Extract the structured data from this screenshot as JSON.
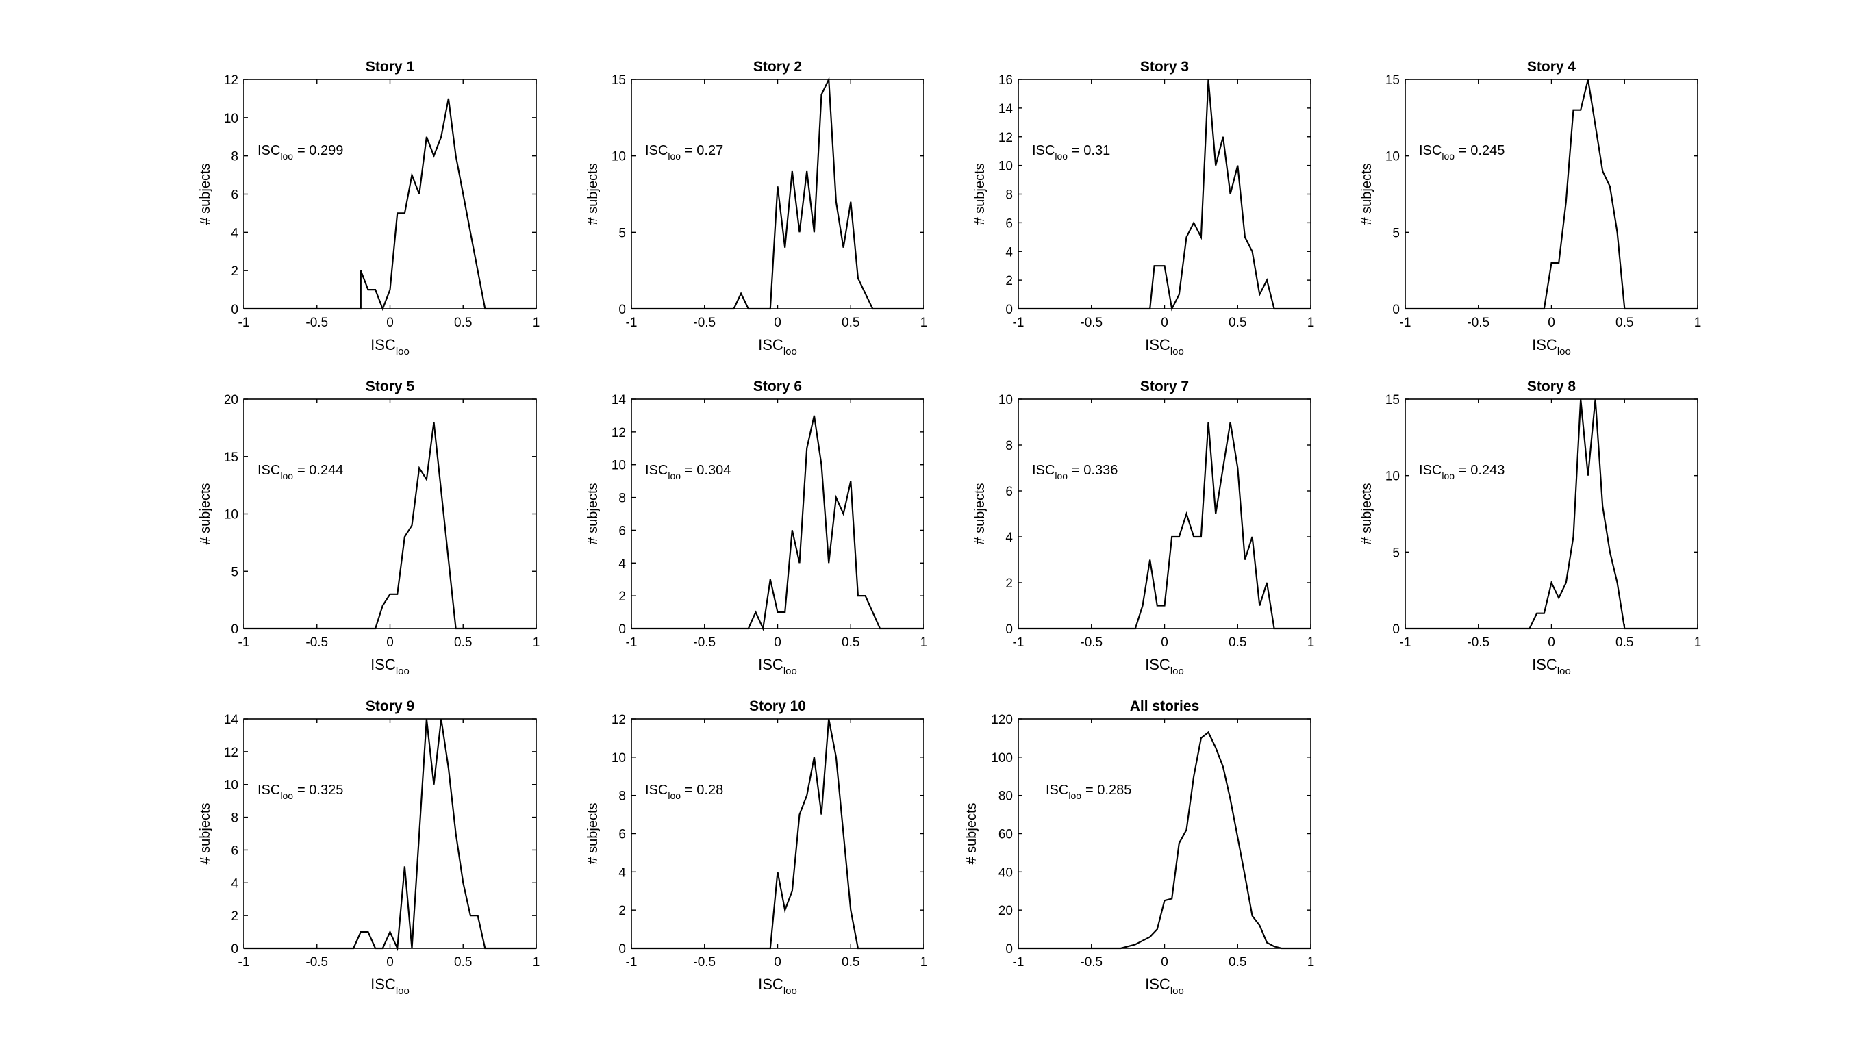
{
  "chart_data": [
    {
      "type": "line",
      "title": "Story 1",
      "xlabel": "ISC",
      "xlabel_sub": "loo",
      "ylabel": "# subjects",
      "xlim": [
        -1,
        1
      ],
      "ylim": [
        0,
        12
      ],
      "yticks": [
        0,
        2,
        4,
        6,
        8,
        10,
        12
      ],
      "xticks": [
        -1,
        -0.5,
        0,
        0.5,
        1
      ],
      "annotation": {
        "prefix": "ISC",
        "sub": "loo",
        "value": "= 0.299"
      },
      "x": [
        -1,
        -0.2,
        -0.2,
        -0.15,
        -0.1,
        -0.05,
        0,
        0.05,
        0.1,
        0.15,
        0.2,
        0.25,
        0.3,
        0.35,
        0.4,
        0.45,
        0.5,
        0.55,
        0.6,
        0.65,
        1
      ],
      "y": [
        0,
        0,
        2,
        1,
        1,
        0,
        1,
        5,
        5,
        7,
        6,
        9,
        8,
        9,
        11,
        8,
        6,
        4,
        2,
        0,
        0
      ]
    },
    {
      "type": "line",
      "title": "Story 2",
      "xlabel": "ISC",
      "xlabel_sub": "loo",
      "ylabel": "# subjects",
      "xlim": [
        -1,
        1
      ],
      "ylim": [
        0,
        15
      ],
      "yticks": [
        0,
        5,
        10,
        15
      ],
      "xticks": [
        -1,
        -0.5,
        0,
        0.5,
        1
      ],
      "annotation": {
        "prefix": "ISC",
        "sub": "loo",
        "value": "= 0.27"
      },
      "x": [
        -1,
        -0.3,
        -0.25,
        -0.2,
        -0.05,
        0,
        0.05,
        0.1,
        0.15,
        0.2,
        0.25,
        0.3,
        0.35,
        0.4,
        0.45,
        0.5,
        0.55,
        0.6,
        0.65,
        1
      ],
      "y": [
        0,
        0,
        1,
        0,
        0,
        8,
        4,
        9,
        5,
        9,
        5,
        14,
        15,
        7,
        4,
        7,
        2,
        1,
        0,
        0
      ]
    },
    {
      "type": "line",
      "title": "Story 3",
      "xlabel": "ISC",
      "xlabel_sub": "loo",
      "ylabel": "# subjects",
      "xlim": [
        -1,
        1
      ],
      "ylim": [
        0,
        16
      ],
      "yticks": [
        0,
        2,
        4,
        6,
        8,
        10,
        12,
        14,
        16
      ],
      "xticks": [
        -1,
        -0.5,
        0,
        0.5,
        1
      ],
      "annotation": {
        "prefix": "ISC",
        "sub": "loo",
        "value": "= 0.31"
      },
      "x": [
        -1,
        -0.1,
        -0.07,
        0,
        0.05,
        0.1,
        0.15,
        0.2,
        0.25,
        0.3,
        0.35,
        0.4,
        0.45,
        0.5,
        0.55,
        0.6,
        0.65,
        0.7,
        0.75,
        1
      ],
      "y": [
        0,
        0,
        3,
        3,
        0,
        1,
        5,
        6,
        5,
        16,
        10,
        12,
        8,
        10,
        5,
        4,
        1,
        2,
        0,
        0
      ]
    },
    {
      "type": "line",
      "title": "Story 4",
      "xlabel": "ISC",
      "xlabel_sub": "loo",
      "ylabel": "# subjects",
      "xlim": [
        -1,
        1
      ],
      "ylim": [
        0,
        15
      ],
      "yticks": [
        0,
        5,
        10,
        15
      ],
      "xticks": [
        -1,
        -0.5,
        0,
        0.5,
        1
      ],
      "annotation": {
        "prefix": "ISC",
        "sub": "loo",
        "value": "= 0.245"
      },
      "x": [
        -1,
        -0.05,
        0,
        0.05,
        0.1,
        0.15,
        0.2,
        0.25,
        0.3,
        0.35,
        0.4,
        0.45,
        0.5,
        1
      ],
      "y": [
        0,
        0,
        3,
        3,
        7,
        13,
        13,
        15,
        12,
        9,
        8,
        5,
        0,
        0
      ]
    },
    {
      "type": "line",
      "title": "Story 5",
      "xlabel": "ISC",
      "xlabel_sub": "loo",
      "ylabel": "# subjects",
      "xlim": [
        -1,
        1
      ],
      "ylim": [
        0,
        20
      ],
      "yticks": [
        0,
        5,
        10,
        15,
        20
      ],
      "xticks": [
        -1,
        -0.5,
        0,
        0.5,
        1
      ],
      "annotation": {
        "prefix": "ISC",
        "sub": "loo",
        "value": "= 0.244"
      },
      "x": [
        -1,
        -0.1,
        -0.05,
        0,
        0.05,
        0.1,
        0.15,
        0.2,
        0.25,
        0.3,
        0.35,
        0.4,
        0.45,
        0.5,
        1
      ],
      "y": [
        0,
        0,
        2,
        3,
        3,
        8,
        9,
        14,
        13,
        18,
        12,
        6,
        0,
        0,
        0
      ]
    },
    {
      "type": "line",
      "title": "Story 6",
      "xlabel": "ISC",
      "xlabel_sub": "loo",
      "ylabel": "# subjects",
      "xlim": [
        -1,
        1
      ],
      "ylim": [
        0,
        14
      ],
      "yticks": [
        0,
        2,
        4,
        6,
        8,
        10,
        12,
        14
      ],
      "xticks": [
        -1,
        -0.5,
        0,
        0.5,
        1
      ],
      "annotation": {
        "prefix": "ISC",
        "sub": "loo",
        "value": "= 0.304"
      },
      "x": [
        -1,
        -0.2,
        -0.15,
        -0.1,
        -0.05,
        0,
        0.05,
        0.1,
        0.15,
        0.2,
        0.25,
        0.3,
        0.35,
        0.4,
        0.45,
        0.5,
        0.55,
        0.6,
        0.65,
        0.7,
        1
      ],
      "y": [
        0,
        0,
        1,
        0,
        3,
        1,
        1,
        6,
        4,
        11,
        13,
        10,
        4,
        8,
        7,
        9,
        2,
        2,
        1,
        0,
        0
      ]
    },
    {
      "type": "line",
      "title": "Story 7",
      "xlabel": "ISC",
      "xlabel_sub": "loo",
      "ylabel": "# subjects",
      "xlim": [
        -1,
        1
      ],
      "ylim": [
        0,
        10
      ],
      "yticks": [
        0,
        2,
        4,
        6,
        8,
        10
      ],
      "xticks": [
        -1,
        -0.5,
        0,
        0.5,
        1
      ],
      "annotation": {
        "prefix": "ISC",
        "sub": "loo",
        "value": "= 0.336"
      },
      "x": [
        -1,
        -0.2,
        -0.15,
        -0.1,
        -0.05,
        0,
        0.05,
        0.1,
        0.15,
        0.2,
        0.25,
        0.3,
        0.35,
        0.4,
        0.45,
        0.5,
        0.55,
        0.6,
        0.65,
        0.7,
        0.75,
        1
      ],
      "y": [
        0,
        0,
        1,
        3,
        1,
        1,
        4,
        4,
        5,
        4,
        4,
        9,
        5,
        7,
        9,
        7,
        3,
        4,
        1,
        2,
        0,
        0
      ]
    },
    {
      "type": "line",
      "title": "Story 8",
      "xlabel": "ISC",
      "xlabel_sub": "loo",
      "ylabel": "# subjects",
      "xlim": [
        -1,
        1
      ],
      "ylim": [
        0,
        15
      ],
      "yticks": [
        0,
        5,
        10,
        15
      ],
      "xticks": [
        -1,
        -0.5,
        0,
        0.5,
        1
      ],
      "annotation": {
        "prefix": "ISC",
        "sub": "loo",
        "value": "= 0.243"
      },
      "x": [
        -1,
        -0.15,
        -0.1,
        -0.05,
        0,
        0.05,
        0.1,
        0.15,
        0.2,
        0.25,
        0.3,
        0.35,
        0.4,
        0.45,
        0.5,
        1
      ],
      "y": [
        0,
        0,
        1,
        1,
        3,
        2,
        3,
        6,
        15,
        10,
        15,
        8,
        5,
        3,
        0,
        0
      ]
    },
    {
      "type": "line",
      "title": "Story 9",
      "xlabel": "ISC",
      "xlabel_sub": "loo",
      "ylabel": "# subjects",
      "xlim": [
        -1,
        1
      ],
      "ylim": [
        0,
        14
      ],
      "yticks": [
        0,
        2,
        4,
        6,
        8,
        10,
        12,
        14
      ],
      "xticks": [
        -1,
        -0.5,
        0,
        0.5,
        1
      ],
      "annotation": {
        "prefix": "ISC",
        "sub": "loo",
        "value": "= 0.325"
      },
      "x": [
        -1,
        -0.25,
        -0.2,
        -0.15,
        -0.1,
        -0.05,
        0,
        0.05,
        0.1,
        0.15,
        0.2,
        0.25,
        0.3,
        0.35,
        0.4,
        0.45,
        0.5,
        0.55,
        0.6,
        0.65,
        1
      ],
      "y": [
        0,
        0,
        1,
        1,
        0,
        0,
        1,
        0,
        5,
        0,
        7,
        14,
        10,
        14,
        11,
        7,
        4,
        2,
        2,
        0,
        0
      ]
    },
    {
      "type": "line",
      "title": "Story 10",
      "xlabel": "ISC",
      "xlabel_sub": "loo",
      "ylabel": "# subjects",
      "xlim": [
        -1,
        1
      ],
      "ylim": [
        0,
        12
      ],
      "yticks": [
        0,
        2,
        4,
        6,
        8,
        10,
        12
      ],
      "xticks": [
        -1,
        -0.5,
        0,
        0.5,
        1
      ],
      "annotation": {
        "prefix": "ISC",
        "sub": "loo",
        "value": "= 0.28"
      },
      "x": [
        -1,
        -0.05,
        0,
        0.05,
        0.1,
        0.15,
        0.2,
        0.25,
        0.3,
        0.35,
        0.4,
        0.45,
        0.5,
        0.55,
        1
      ],
      "y": [
        0,
        0,
        4,
        2,
        3,
        7,
        8,
        10,
        7,
        12,
        10,
        6,
        2,
        0,
        0
      ]
    },
    {
      "type": "line",
      "title": "All stories",
      "xlabel": "ISC",
      "xlabel_sub": "loo",
      "ylabel": "# subjects",
      "xlim": [
        -1,
        1
      ],
      "ylim": [
        0,
        120
      ],
      "yticks": [
        0,
        20,
        40,
        60,
        80,
        100,
        120
      ],
      "xticks": [
        -1,
        -0.5,
        0,
        0.5,
        1
      ],
      "annotation": {
        "prefix": "ISC",
        "sub": "loo",
        "value": "= 0.285"
      },
      "x": [
        -1,
        -0.3,
        -0.25,
        -0.2,
        -0.15,
        -0.1,
        -0.05,
        0,
        0.05,
        0.1,
        0.15,
        0.2,
        0.25,
        0.3,
        0.35,
        0.4,
        0.45,
        0.5,
        0.55,
        0.6,
        0.65,
        0.7,
        0.75,
        0.8,
        1
      ],
      "y": [
        0,
        0,
        1,
        2,
        4,
        6,
        10,
        25,
        26,
        55,
        62,
        90,
        110,
        113,
        105,
        95,
        78,
        58,
        38,
        17,
        12,
        3,
        1,
        0,
        0
      ]
    }
  ]
}
